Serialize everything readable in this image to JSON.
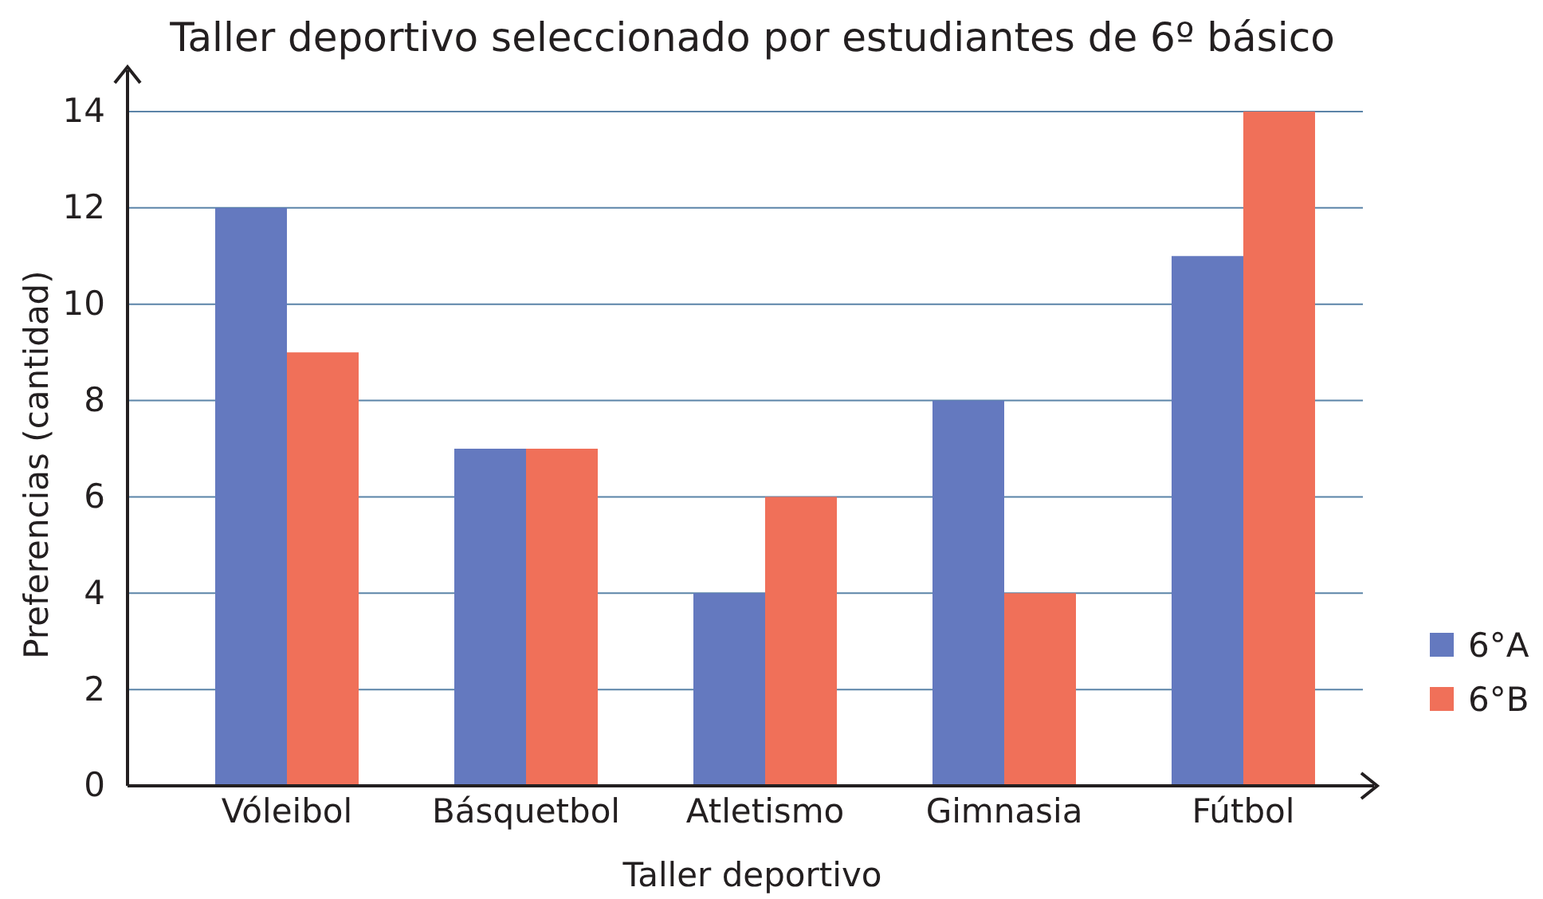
{
  "chart_data": {
    "type": "bar",
    "title": "Taller deportivo seleccionado por estudiantes de 6º básico",
    "xlabel": "Taller deportivo",
    "ylabel": "Preferencias (cantidad)",
    "categories": [
      "Vóleibol",
      "Básquetbol",
      "Atletismo",
      "Gimnasia",
      "Fútbol"
    ],
    "series": [
      {
        "name": "6°A",
        "color": "#6479bf",
        "values": [
          12,
          7,
          4,
          8,
          11
        ]
      },
      {
        "name": "6°B",
        "color": "#f07059",
        "values": [
          9,
          7,
          6,
          4,
          14
        ]
      }
    ],
    "ylim": [
      0,
      14
    ],
    "yticks": [
      0,
      2,
      4,
      6,
      8,
      10,
      12,
      14
    ],
    "grid": "y",
    "legend": "right"
  }
}
